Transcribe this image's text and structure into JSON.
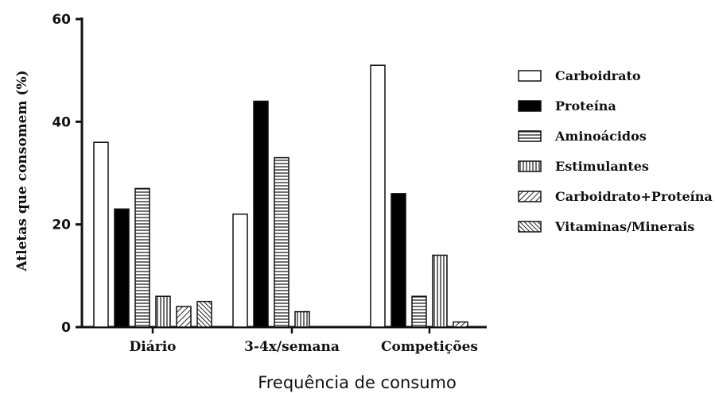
{
  "chart_data": {
    "type": "bar",
    "title": "",
    "xlabel": "Frequência de consumo",
    "ylabel": "Atletas que consomem (%)",
    "ylim": [
      0,
      60
    ],
    "yticks": [
      "0",
      "20",
      "40",
      "60"
    ],
    "categories": [
      "Diário",
      "3-4x/semana",
      "Competições"
    ],
    "legend_position": "right",
    "grid": false,
    "series": [
      {
        "name": "Carboidrato",
        "pattern": "white",
        "values": [
          36,
          22,
          51
        ]
      },
      {
        "name": "Proteína",
        "pattern": "black",
        "values": [
          23,
          44,
          26
        ]
      },
      {
        "name": "Aminoácidos",
        "pattern": "horizontal-lines",
        "values": [
          27,
          33,
          6
        ]
      },
      {
        "name": "Estimulantes",
        "pattern": "vertical-lines",
        "values": [
          6,
          3,
          14
        ]
      },
      {
        "name": "Carboidrato+Proteína",
        "pattern": "diagonal-lines",
        "values": [
          4,
          null,
          1
        ]
      },
      {
        "name": "Vitaminas/Minerais",
        "pattern": "diagonal-lines-dense",
        "values": [
          5,
          null,
          null
        ]
      }
    ]
  }
}
